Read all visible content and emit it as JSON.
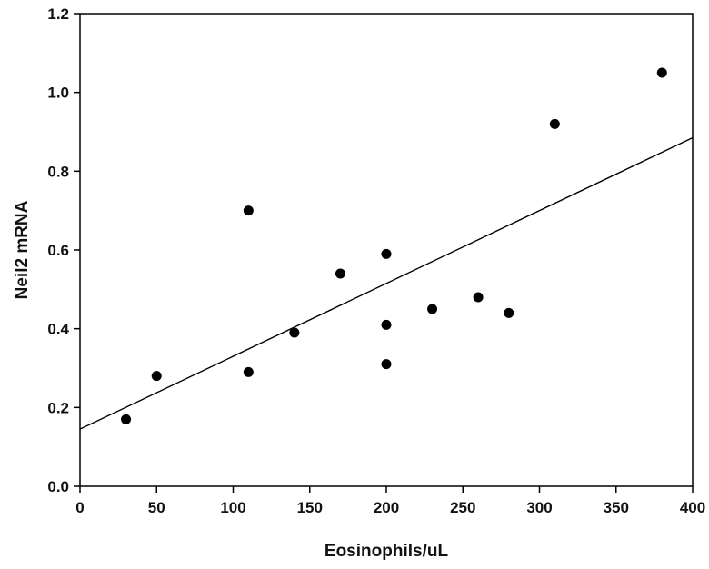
{
  "chart_data": {
    "type": "scatter",
    "title": "",
    "xlabel": "Eosinophils/uL",
    "ylabel": "Neil2 mRNA",
    "xlim": [
      0,
      400
    ],
    "ylim": [
      0,
      1.2
    ],
    "x_ticks": [
      "0",
      "50",
      "100",
      "150",
      "200",
      "250",
      "300",
      "350",
      "400"
    ],
    "y_ticks": [
      "0.0",
      "0.2",
      "0.4",
      "0.6",
      "0.8",
      "1.0",
      "1.2"
    ],
    "grid": false,
    "points": [
      {
        "x": 30,
        "y": 0.17
      },
      {
        "x": 50,
        "y": 0.28
      },
      {
        "x": 110,
        "y": 0.7
      },
      {
        "x": 110,
        "y": 0.29
      },
      {
        "x": 140,
        "y": 0.39
      },
      {
        "x": 170,
        "y": 0.54
      },
      {
        "x": 200,
        "y": 0.59
      },
      {
        "x": 200,
        "y": 0.41
      },
      {
        "x": 200,
        "y": 0.31
      },
      {
        "x": 230,
        "y": 0.45
      },
      {
        "x": 260,
        "y": 0.48
      },
      {
        "x": 280,
        "y": 0.44
      },
      {
        "x": 310,
        "y": 0.92
      },
      {
        "x": 380,
        "y": 1.05
      }
    ],
    "regression_line": {
      "x": [
        0,
        400
      ],
      "y": [
        0.145,
        0.885
      ]
    }
  }
}
